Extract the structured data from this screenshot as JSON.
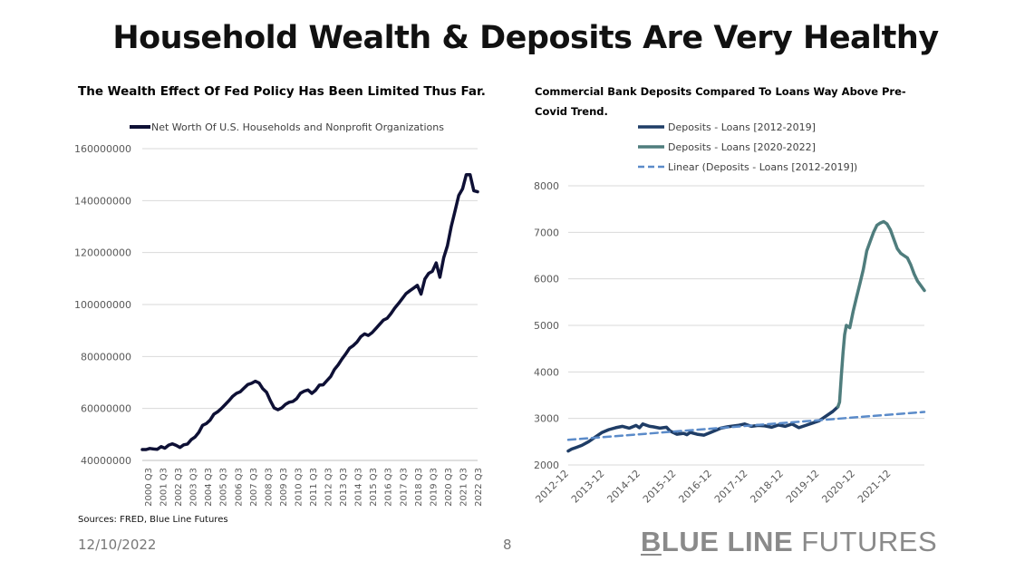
{
  "slide": {
    "title": "Household Wealth & Deposits Are Very Healthy",
    "date": "12/10/2022",
    "page_number": "8",
    "sources": "Sources: FRED, Blue Line Futures",
    "logo_bold_first": "B",
    "logo_bold_rest": "LUE LINE",
    "logo_light": " FUTURES"
  },
  "colors": {
    "net_worth": "#0e1035",
    "series_2012_2019": "#1f3d66",
    "series_2020_2022": "#4f7d7d",
    "linear_trend": "#5b8bc9",
    "grid": "#d9d9d9",
    "axis_text": "#595959"
  },
  "chart_data": [
    {
      "type": "line",
      "title": "The Wealth Effect Of Fed Policy Has Been Limited Thus Far.",
      "legend_position": "top",
      "grid": true,
      "ylim": [
        40000000,
        160000000
      ],
      "yticks": [
        40000000,
        60000000,
        80000000,
        100000000,
        120000000,
        140000000,
        160000000
      ],
      "ytick_labels": [
        "40000000",
        "60000000",
        "80000000",
        "100000000",
        "120000000",
        "140000000",
        "160000000"
      ],
      "xtick_labels": [
        "2000 Q3",
        "2001 Q3",
        "2002 Q3",
        "2003 Q3",
        "2004 Q3",
        "2005 Q3",
        "2006 Q3",
        "2007 Q3",
        "2008 Q3",
        "2009 Q3",
        "2010 Q3",
        "2011 Q3",
        "2012 Q3",
        "2013 Q3",
        "2014 Q3",
        "2015 Q3",
        "2016 Q3",
        "2017 Q3",
        "2018 Q3",
        "2019 Q3",
        "2020 Q3",
        "2021 Q3",
        "2022 Q3"
      ],
      "series": [
        {
          "name": "Net Worth Of U.S. Households and Nonprofit Organizations",
          "color_key": "net_worth",
          "x": [
            2000.25,
            2000.5,
            2000.75,
            2001.0,
            2001.25,
            2001.5,
            2001.75,
            2002.0,
            2002.25,
            2002.5,
            2002.75,
            2003.0,
            2003.25,
            2003.5,
            2003.75,
            2004.0,
            2004.25,
            2004.5,
            2004.75,
            2005.0,
            2005.25,
            2005.5,
            2005.75,
            2006.0,
            2006.25,
            2006.5,
            2006.75,
            2007.0,
            2007.25,
            2007.5,
            2007.75,
            2008.0,
            2008.25,
            2008.5,
            2008.75,
            2009.0,
            2009.25,
            2009.5,
            2009.75,
            2010.0,
            2010.25,
            2010.5,
            2010.75,
            2011.0,
            2011.25,
            2011.5,
            2011.75,
            2012.0,
            2012.25,
            2012.5,
            2012.75,
            2013.0,
            2013.25,
            2013.5,
            2013.75,
            2014.0,
            2014.25,
            2014.5,
            2014.75,
            2015.0,
            2015.25,
            2015.5,
            2015.75,
            2016.0,
            2016.25,
            2016.5,
            2016.75,
            2017.0,
            2017.25,
            2017.5,
            2017.75,
            2018.0,
            2018.25,
            2018.5,
            2018.75,
            2019.0,
            2019.25,
            2019.5,
            2019.75,
            2020.0,
            2020.25,
            2020.5,
            2020.75,
            2021.0,
            2021.25,
            2021.5,
            2021.75,
            2022.0,
            2022.25,
            2022.5
          ],
          "y": [
            44200000,
            44200000,
            44600000,
            44400000,
            44300000,
            45300000,
            44700000,
            45900000,
            46400000,
            45800000,
            45000000,
            46000000,
            46300000,
            48000000,
            49000000,
            50800000,
            53500000,
            54200000,
            55500000,
            57800000,
            58700000,
            60000000,
            61500000,
            63000000,
            64700000,
            65800000,
            66400000,
            67800000,
            69200000,
            69700000,
            70500000,
            69800000,
            67600000,
            66200000,
            63000000,
            60200000,
            59500000,
            60200000,
            61600000,
            62400000,
            62700000,
            63800000,
            65900000,
            66700000,
            67100000,
            65800000,
            67000000,
            69000000,
            69100000,
            70700000,
            72300000,
            75000000,
            76800000,
            79000000,
            81000000,
            83200000,
            84200000,
            85600000,
            87600000,
            88700000,
            88100000,
            89200000,
            90800000,
            92400000,
            94000000,
            94700000,
            96500000,
            98600000,
            100400000,
            102300000,
            104200000,
            105300000,
            106300000,
            107400000,
            104000000,
            109800000,
            112000000,
            112800000,
            116000000,
            110500000,
            118000000,
            122600000,
            130000000,
            136000000,
            142000000,
            144500000,
            150000000,
            150000000,
            143800000,
            143400000
          ]
        }
      ]
    },
    {
      "type": "line",
      "title": "Commercial Bank Deposits Compared To Loans Way Above Pre-Covid Trend.",
      "legend_position": "top",
      "grid": true,
      "ylim": [
        2000,
        8000
      ],
      "yticks": [
        2000,
        3000,
        4000,
        5000,
        6000,
        7000,
        8000
      ],
      "ytick_labels": [
        "2000",
        "3000",
        "4000",
        "5000",
        "6000",
        "7000",
        "8000"
      ],
      "xtick_labels": [
        "2012-12",
        "2013-12",
        "2014-12",
        "2015-12",
        "2016-12",
        "2017-12",
        "2018-12",
        "2019-12",
        "2020-12",
        "2021-12"
      ],
      "series": [
        {
          "name": "Deposits - Loans [2012-2019]",
          "color_key": "series_2012_2019",
          "x": [
            2012.0,
            2012.1,
            2012.25,
            2012.4,
            2012.6,
            2012.8,
            2013.0,
            2013.2,
            2013.4,
            2013.6,
            2013.8,
            2014.0,
            2014.1,
            2014.2,
            2014.4,
            2014.5,
            2014.7,
            2014.9,
            2015.0,
            2015.2,
            2015.4,
            2015.5,
            2015.6,
            2015.8,
            2016.0,
            2016.2,
            2016.4,
            2016.5,
            2016.7,
            2016.9,
            2017.0,
            2017.2,
            2017.4,
            2017.6,
            2017.8,
            2018.0,
            2018.2,
            2018.4,
            2018.6,
            2018.8,
            2019.0,
            2019.2,
            2019.4,
            2019.6,
            2019.8,
            2019.95
          ],
          "y": [
            2300,
            2340,
            2380,
            2420,
            2500,
            2600,
            2700,
            2760,
            2800,
            2830,
            2790,
            2850,
            2800,
            2880,
            2830,
            2820,
            2790,
            2810,
            2730,
            2660,
            2680,
            2650,
            2700,
            2660,
            2640,
            2700,
            2760,
            2790,
            2820,
            2840,
            2850,
            2880,
            2830,
            2850,
            2840,
            2810,
            2860,
            2830,
            2880,
            2800,
            2850,
            2900,
            2950,
            3050,
            3150,
            3250
          ]
        },
        {
          "name": "Deposits - Loans [2020-2022]",
          "color_key": "series_2020_2022",
          "x": [
            2019.95,
            2020.0,
            2020.05,
            2020.1,
            2020.15,
            2020.2,
            2020.3,
            2020.4,
            2020.5,
            2020.6,
            2020.7,
            2020.8,
            2020.9,
            2021.0,
            2021.1,
            2021.2,
            2021.3,
            2021.4,
            2021.5,
            2021.6,
            2021.7,
            2021.8,
            2021.9,
            2022.0,
            2022.1,
            2022.2,
            2022.3,
            2022.4,
            2022.5
          ],
          "y": [
            3250,
            3350,
            3900,
            4400,
            4800,
            5000,
            4950,
            5300,
            5600,
            5900,
            6200,
            6600,
            6800,
            7000,
            7150,
            7200,
            7230,
            7180,
            7050,
            6850,
            6650,
            6550,
            6500,
            6450,
            6300,
            6100,
            5950,
            5850,
            5750
          ]
        },
        {
          "name": "Linear (Deposits - Loans [2012-2019])",
          "color_key": "linear_trend",
          "dashed": true,
          "x": [
            2012.0,
            2022.5
          ],
          "y": [
            2540,
            3140
          ]
        }
      ]
    }
  ]
}
